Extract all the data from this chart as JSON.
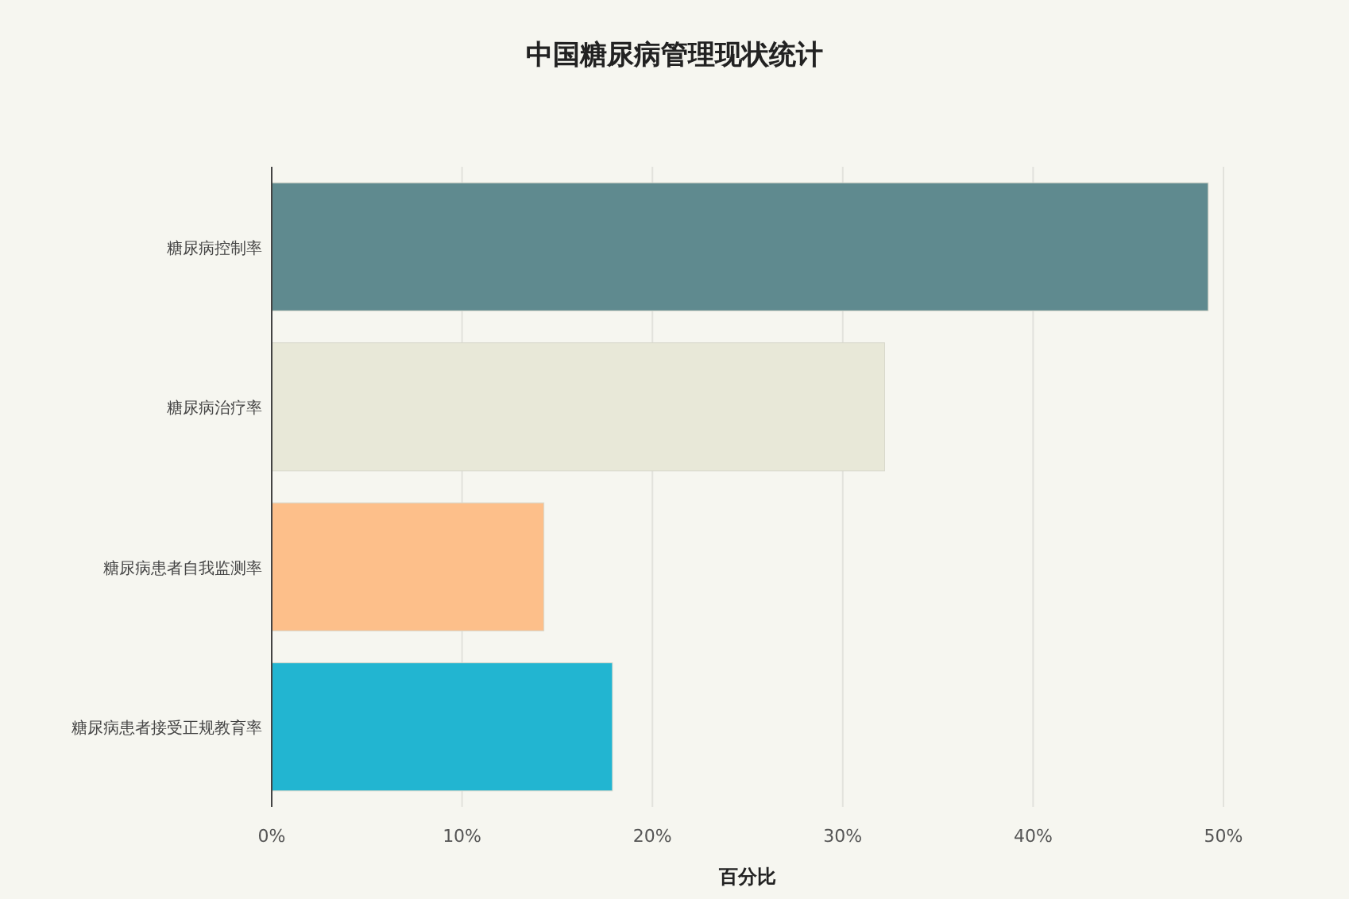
{
  "chart_data": {
    "type": "bar",
    "orientation": "horizontal",
    "title": "中国糖尿病管理现状统计",
    "xlabel": "百分比",
    "categories": [
      "糖尿病控制率",
      "糖尿病治疗率",
      "糖尿病患者自我监测率",
      "糖尿病患者接受正规教育率"
    ],
    "values": [
      49.2,
      32.2,
      14.3,
      17.9
    ],
    "colors": [
      "#5f8a8f",
      "#e8e8d8",
      "#fdbf8a",
      "#22b5d1"
    ],
    "xlim": [
      0,
      50
    ],
    "xticks": [
      {
        "value": 0,
        "label": "0%"
      },
      {
        "value": 10,
        "label": "10%"
      },
      {
        "value": 20,
        "label": "20%"
      },
      {
        "value": 30,
        "label": "30%"
      },
      {
        "value": 40,
        "label": "40%"
      },
      {
        "value": 50,
        "label": "50%"
      }
    ],
    "grid": "x"
  }
}
